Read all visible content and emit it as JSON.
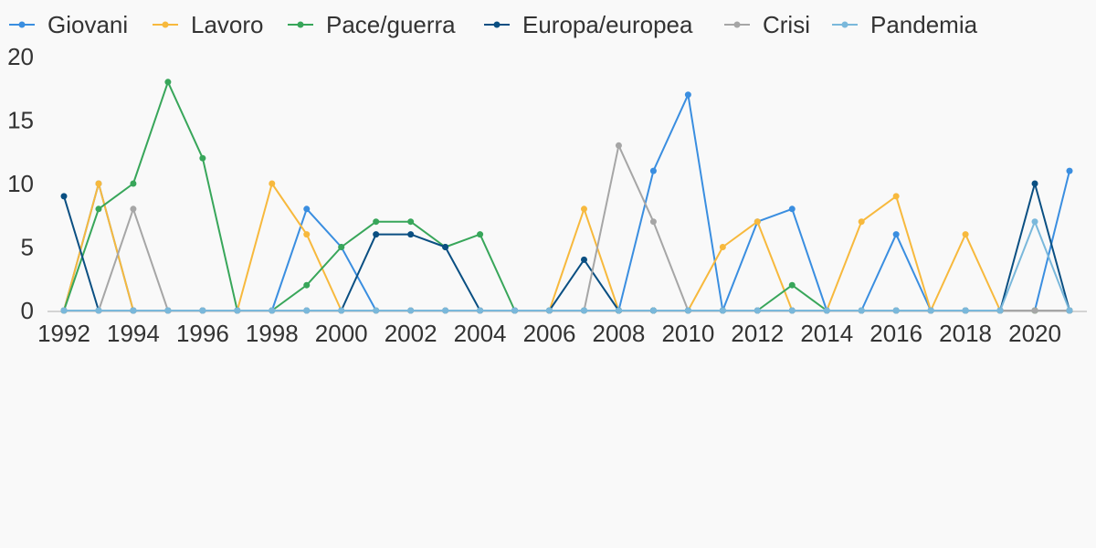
{
  "chart_data": {
    "type": "line",
    "title": "",
    "xlabel": "",
    "ylabel": "",
    "x": [
      1992,
      1993,
      1994,
      1995,
      1996,
      1997,
      1998,
      1999,
      2000,
      2001,
      2002,
      2003,
      2004,
      2005,
      2006,
      2007,
      2008,
      2009,
      2010,
      2011,
      2012,
      2013,
      2014,
      2015,
      2016,
      2017,
      2018,
      2019,
      2020,
      2021
    ],
    "xlim": [
      1992,
      2021
    ],
    "ylim": [
      0,
      20
    ],
    "x_ticks": [
      "1992",
      "1994",
      "1996",
      "1998",
      "2000",
      "2002",
      "2004",
      "2006",
      "2008",
      "2010",
      "2012",
      "2014",
      "2016",
      "2018",
      "2020"
    ],
    "y_ticks": [
      "0",
      "5",
      "10",
      "15",
      "20"
    ],
    "grid": false,
    "legend_position": "top",
    "series": [
      {
        "name": "Giovani",
        "color": "#3a8ee0",
        "values": [
          0,
          10,
          0,
          0,
          0,
          0,
          0,
          8,
          5,
          0,
          0,
          0,
          0,
          0,
          0,
          0,
          0,
          11,
          17,
          0,
          7,
          8,
          0,
          0,
          6,
          0,
          0,
          0,
          0,
          11
        ]
      },
      {
        "name": "Lavoro",
        "color": "#f7b93d",
        "values": [
          0,
          10,
          0,
          0,
          0,
          0,
          10,
          6,
          0,
          0,
          0,
          0,
          0,
          0,
          0,
          8,
          0,
          0,
          0,
          5,
          7,
          0,
          0,
          7,
          9,
          0,
          6,
          0,
          0,
          0
        ]
      },
      {
        "name": "Pace/guerra",
        "color": "#38a65a",
        "values": [
          0,
          8,
          10,
          18,
          12,
          0,
          0,
          2,
          5,
          7,
          7,
          5,
          6,
          0,
          0,
          0,
          0,
          0,
          0,
          0,
          0,
          2,
          0,
          0,
          0,
          0,
          0,
          0,
          0,
          0
        ]
      },
      {
        "name": "Europa/europea",
        "color": "#0a4f82",
        "values": [
          9,
          0,
          0,
          0,
          0,
          0,
          0,
          0,
          0,
          6,
          6,
          5,
          0,
          0,
          0,
          4,
          0,
          0,
          0,
          0,
          0,
          0,
          0,
          0,
          0,
          0,
          0,
          0,
          10,
          0
        ]
      },
      {
        "name": "Crisi",
        "color": "#a6a6a6",
        "values": [
          0,
          0,
          8,
          0,
          0,
          0,
          0,
          0,
          0,
          0,
          0,
          0,
          0,
          0,
          0,
          0,
          13,
          7,
          0,
          0,
          0,
          0,
          0,
          0,
          0,
          0,
          0,
          0,
          0,
          0
        ]
      },
      {
        "name": "Pandemia",
        "color": "#7ab8db",
        "values": [
          0,
          0,
          0,
          0,
          0,
          0,
          0,
          0,
          0,
          0,
          0,
          0,
          0,
          0,
          0,
          0,
          0,
          0,
          0,
          0,
          0,
          0,
          0,
          0,
          0,
          0,
          0,
          0,
          7,
          0
        ]
      }
    ]
  }
}
